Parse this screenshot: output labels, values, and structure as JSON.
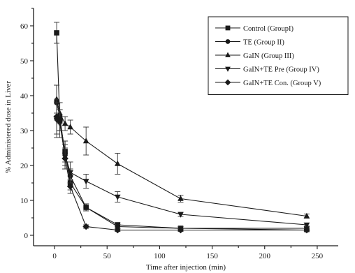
{
  "chart_data": {
    "type": "line",
    "title": "",
    "xlabel": "Time after injection (min)",
    "ylabel": "% Administered dose in Liver",
    "xlim": [
      -20,
      270
    ],
    "ylim": [
      -3,
      65
    ],
    "xticks": [
      0,
      50,
      100,
      150,
      200,
      250
    ],
    "yticks": [
      0,
      10,
      20,
      30,
      40,
      50,
      60
    ],
    "legend_position": "top-right",
    "x": [
      2,
      5,
      10,
      15,
      30,
      60,
      120,
      240
    ],
    "series": [
      {
        "name": "Control (GroupI)",
        "marker": "square",
        "values": [
          58,
          33,
          24,
          15,
          8,
          3,
          2,
          2
        ],
        "errors": [
          3,
          3,
          3,
          2,
          1,
          0.6,
          0.5,
          0.5
        ]
      },
      {
        "name": "TE (Group II)",
        "marker": "circle",
        "values": [
          38,
          34,
          23,
          17,
          8,
          2.5,
          2,
          1.5
        ],
        "errors": [
          5,
          4,
          3,
          2,
          1,
          0.6,
          0.5,
          0.5
        ]
      },
      {
        "name": "GaIN (Group  III)",
        "marker": "triangle-up",
        "values": [
          39,
          35,
          32,
          31,
          27,
          20.5,
          10.5,
          5.5
        ],
        "errors": [
          4,
          3,
          2,
          2,
          4,
          3,
          1,
          0.6
        ]
      },
      {
        "name": "GaIN+TE Pre  (Group  IV)",
        "marker": "triangle-down",
        "values": [
          33,
          32,
          23,
          18,
          15.5,
          11,
          6,
          3
        ],
        "errors": [
          5,
          4,
          4,
          3,
          2,
          1.5,
          0.6,
          0.5
        ]
      },
      {
        "name": "GaIN+TE Con. (Group   V)",
        "marker": "diamond",
        "values": [
          34,
          33,
          22,
          14,
          2.5,
          1.5,
          1.5,
          1.5
        ],
        "errors": [
          5,
          3,
          3,
          2,
          0.5,
          0.4,
          0.4,
          0.4
        ]
      }
    ]
  }
}
